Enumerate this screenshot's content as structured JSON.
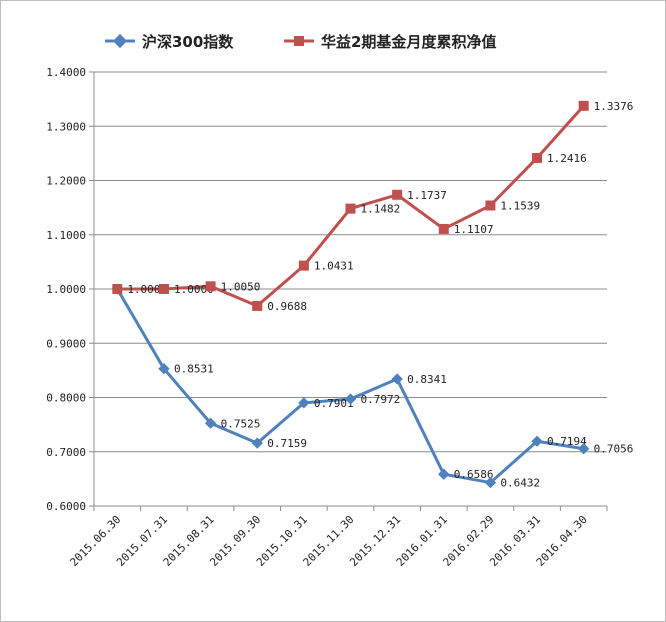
{
  "chart_data": {
    "type": "line",
    "categories": [
      "2015.06.30",
      "2015.07.31",
      "2015.08.31",
      "2015.09.30",
      "2015.10.31",
      "2015.11.30",
      "2015.12.31",
      "2016.01.31",
      "2016.02.29",
      "2016.03.31",
      "2016.04.30"
    ],
    "ylim": [
      0.6,
      1.4
    ],
    "yticks": [
      "0.6000",
      "0.7000",
      "0.8000",
      "0.9000",
      "1.0000",
      "1.1000",
      "1.2000",
      "1.3000",
      "1.4000"
    ],
    "grid": true,
    "legend": "top",
    "series": [
      {
        "name": "沪深300指数",
        "color": "#4f81bd",
        "marker": "diamond",
        "values": [
          1.0,
          0.8531,
          0.7525,
          0.7159,
          0.7901,
          0.7972,
          0.8341,
          0.6586,
          0.6432,
          0.7194,
          0.7056
        ],
        "labels": [
          "",
          "0.8531",
          "0.7525",
          "0.7159",
          "0.7901",
          "0.7972",
          "0.8341",
          "0.6586",
          "0.6432",
          "0.7194",
          "0.7056"
        ]
      },
      {
        "name": "华益2期基金月度累积净值",
        "color": "#c0504d",
        "marker": "square",
        "values": [
          1.0,
          1.0,
          1.005,
          0.9688,
          1.0431,
          1.1482,
          1.1737,
          1.1107,
          1.1539,
          1.2416,
          1.3376
        ],
        "labels": [
          "1.0000",
          "1.0000",
          "1.0050",
          "0.9688",
          "1.0431",
          "1.1482",
          "1.1737",
          "1.1107",
          "1.1539",
          "1.2416",
          "1.3376"
        ]
      }
    ]
  }
}
